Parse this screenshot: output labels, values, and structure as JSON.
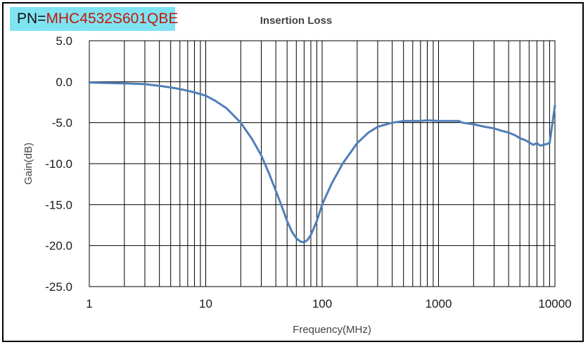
{
  "part_number": {
    "prefix": "PN=",
    "value": "MHC4532S601QBE"
  },
  "chart_data": {
    "type": "line",
    "title": "Insertion Loss",
    "xlabel": "Frequency(MHz)",
    "ylabel": "Gain(dB)",
    "xscale": "log",
    "xlim": [
      1,
      10000
    ],
    "ylim": [
      -25,
      5
    ],
    "grid": true,
    "legend": "none",
    "x_ticks": [
      1,
      10,
      100,
      1000,
      10000
    ],
    "x_tick_labels": [
      "1",
      "10",
      "100",
      "1000",
      "10000"
    ],
    "y_ticks": [
      5,
      0,
      -5,
      -10,
      -15,
      -20,
      -25
    ],
    "y_tick_labels": [
      "5.0",
      "0.0",
      "-5.0",
      "-10.0",
      "-15.0",
      "-20.0",
      "-25.0"
    ],
    "line_color": "#4f7fb8",
    "series": [
      {
        "x": [
          1,
          2,
          3,
          4,
          5,
          6,
          7,
          8,
          10,
          12,
          15,
          20,
          25,
          30,
          35,
          40,
          45,
          50,
          55,
          60,
          65,
          70,
          75,
          80,
          90,
          100,
          120,
          150,
          200,
          250,
          300,
          400,
          500,
          600,
          700,
          800,
          1000,
          1200,
          1400,
          1500,
          1600,
          1800,
          2000,
          2500,
          3000,
          3500,
          4000,
          4500,
          5000,
          5500,
          6000,
          6500,
          7000,
          7500,
          8000,
          8500,
          9000,
          10000
        ],
        "y": [
          -0.1,
          -0.2,
          -0.3,
          -0.5,
          -0.7,
          -0.9,
          -1.1,
          -1.3,
          -1.7,
          -2.3,
          -3.2,
          -5.0,
          -7.0,
          -9.0,
          -11.2,
          -13.3,
          -15.2,
          -17.0,
          -18.3,
          -19.1,
          -19.5,
          -19.6,
          -19.3,
          -18.7,
          -17.0,
          -15.0,
          -12.5,
          -10.0,
          -7.5,
          -6.2,
          -5.5,
          -5.0,
          -4.8,
          -4.8,
          -4.8,
          -4.7,
          -4.8,
          -4.8,
          -4.8,
          -4.8,
          -5.0,
          -5.1,
          -5.2,
          -5.5,
          -5.7,
          -6.0,
          -6.2,
          -6.5,
          -6.9,
          -7.1,
          -7.4,
          -7.7,
          -7.5,
          -7.8,
          -7.7,
          -7.6,
          -7.5,
          -2.9
        ]
      }
    ]
  }
}
